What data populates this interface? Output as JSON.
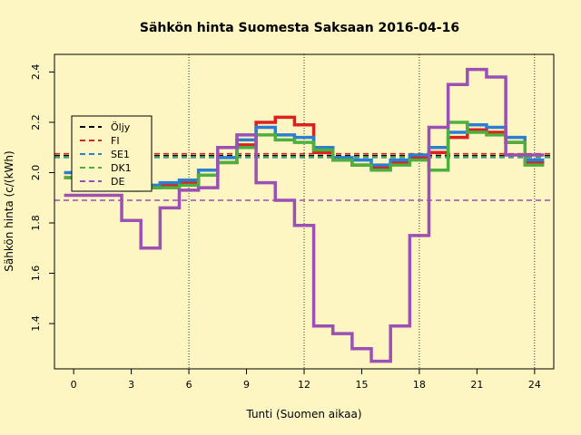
{
  "chart_data": {
    "type": "line",
    "title": "Sähkön hinta Suomesta Saksaan 2016-04-16",
    "xlabel": "Tunti (Suomen aikaa)",
    "ylabel": "Sähkön hinta (c/(kWh)",
    "xlim": [
      -1,
      25
    ],
    "ylim": [
      1.22,
      2.47
    ],
    "xticks": [
      0,
      3,
      6,
      9,
      12,
      15,
      18,
      21,
      24
    ],
    "yticks": [
      1.4,
      1.6,
      1.8,
      2.0,
      2.2,
      2.4
    ],
    "vlines": [
      6,
      12,
      18,
      24
    ],
    "legend_position": "top-left",
    "step": true,
    "series": [
      {
        "name": "Öljy",
        "color": "#000000",
        "dashed_level": 2.068,
        "values": []
      },
      {
        "name": "FI",
        "color": "#df2020",
        "dashed_level": 2.075,
        "values": [
          1.98,
          1.98,
          1.99,
          1.94,
          1.94,
          1.95,
          1.96,
          1.99,
          2.04,
          2.11,
          2.2,
          2.22,
          2.19,
          2.08,
          2.05,
          2.03,
          2.02,
          2.04,
          2.06,
          2.08,
          2.14,
          2.17,
          2.16,
          2.12,
          2.04
        ]
      },
      {
        "name": "SE1",
        "color": "#2a7fd0",
        "dashed_level": 2.06,
        "values": [
          2.0,
          2.0,
          2.0,
          1.95,
          1.95,
          1.96,
          1.97,
          2.01,
          2.06,
          2.13,
          2.18,
          2.15,
          2.14,
          2.1,
          2.06,
          2.05,
          2.03,
          2.05,
          2.07,
          2.1,
          2.16,
          2.19,
          2.18,
          2.14,
          2.05
        ]
      },
      {
        "name": "DK1",
        "color": "#4caf3e",
        "dashed_level": 2.063,
        "values": [
          1.98,
          1.98,
          1.98,
          1.93,
          1.94,
          1.94,
          1.95,
          1.99,
          2.04,
          2.1,
          2.15,
          2.13,
          2.12,
          2.09,
          2.05,
          2.03,
          2.01,
          2.03,
          2.05,
          2.01,
          2.2,
          2.16,
          2.15,
          2.12,
          2.03
        ]
      },
      {
        "name": "DE",
        "color": "#9c4fb4",
        "dashed_level": 1.89,
        "values": [
          1.91,
          1.91,
          1.91,
          1.81,
          1.7,
          1.86,
          1.93,
          1.94,
          2.1,
          2.15,
          1.96,
          1.89,
          1.79,
          1.39,
          1.36,
          1.3,
          1.25,
          1.39,
          1.75,
          2.18,
          2.35,
          2.41,
          2.38,
          2.07,
          2.07
        ]
      }
    ]
  }
}
